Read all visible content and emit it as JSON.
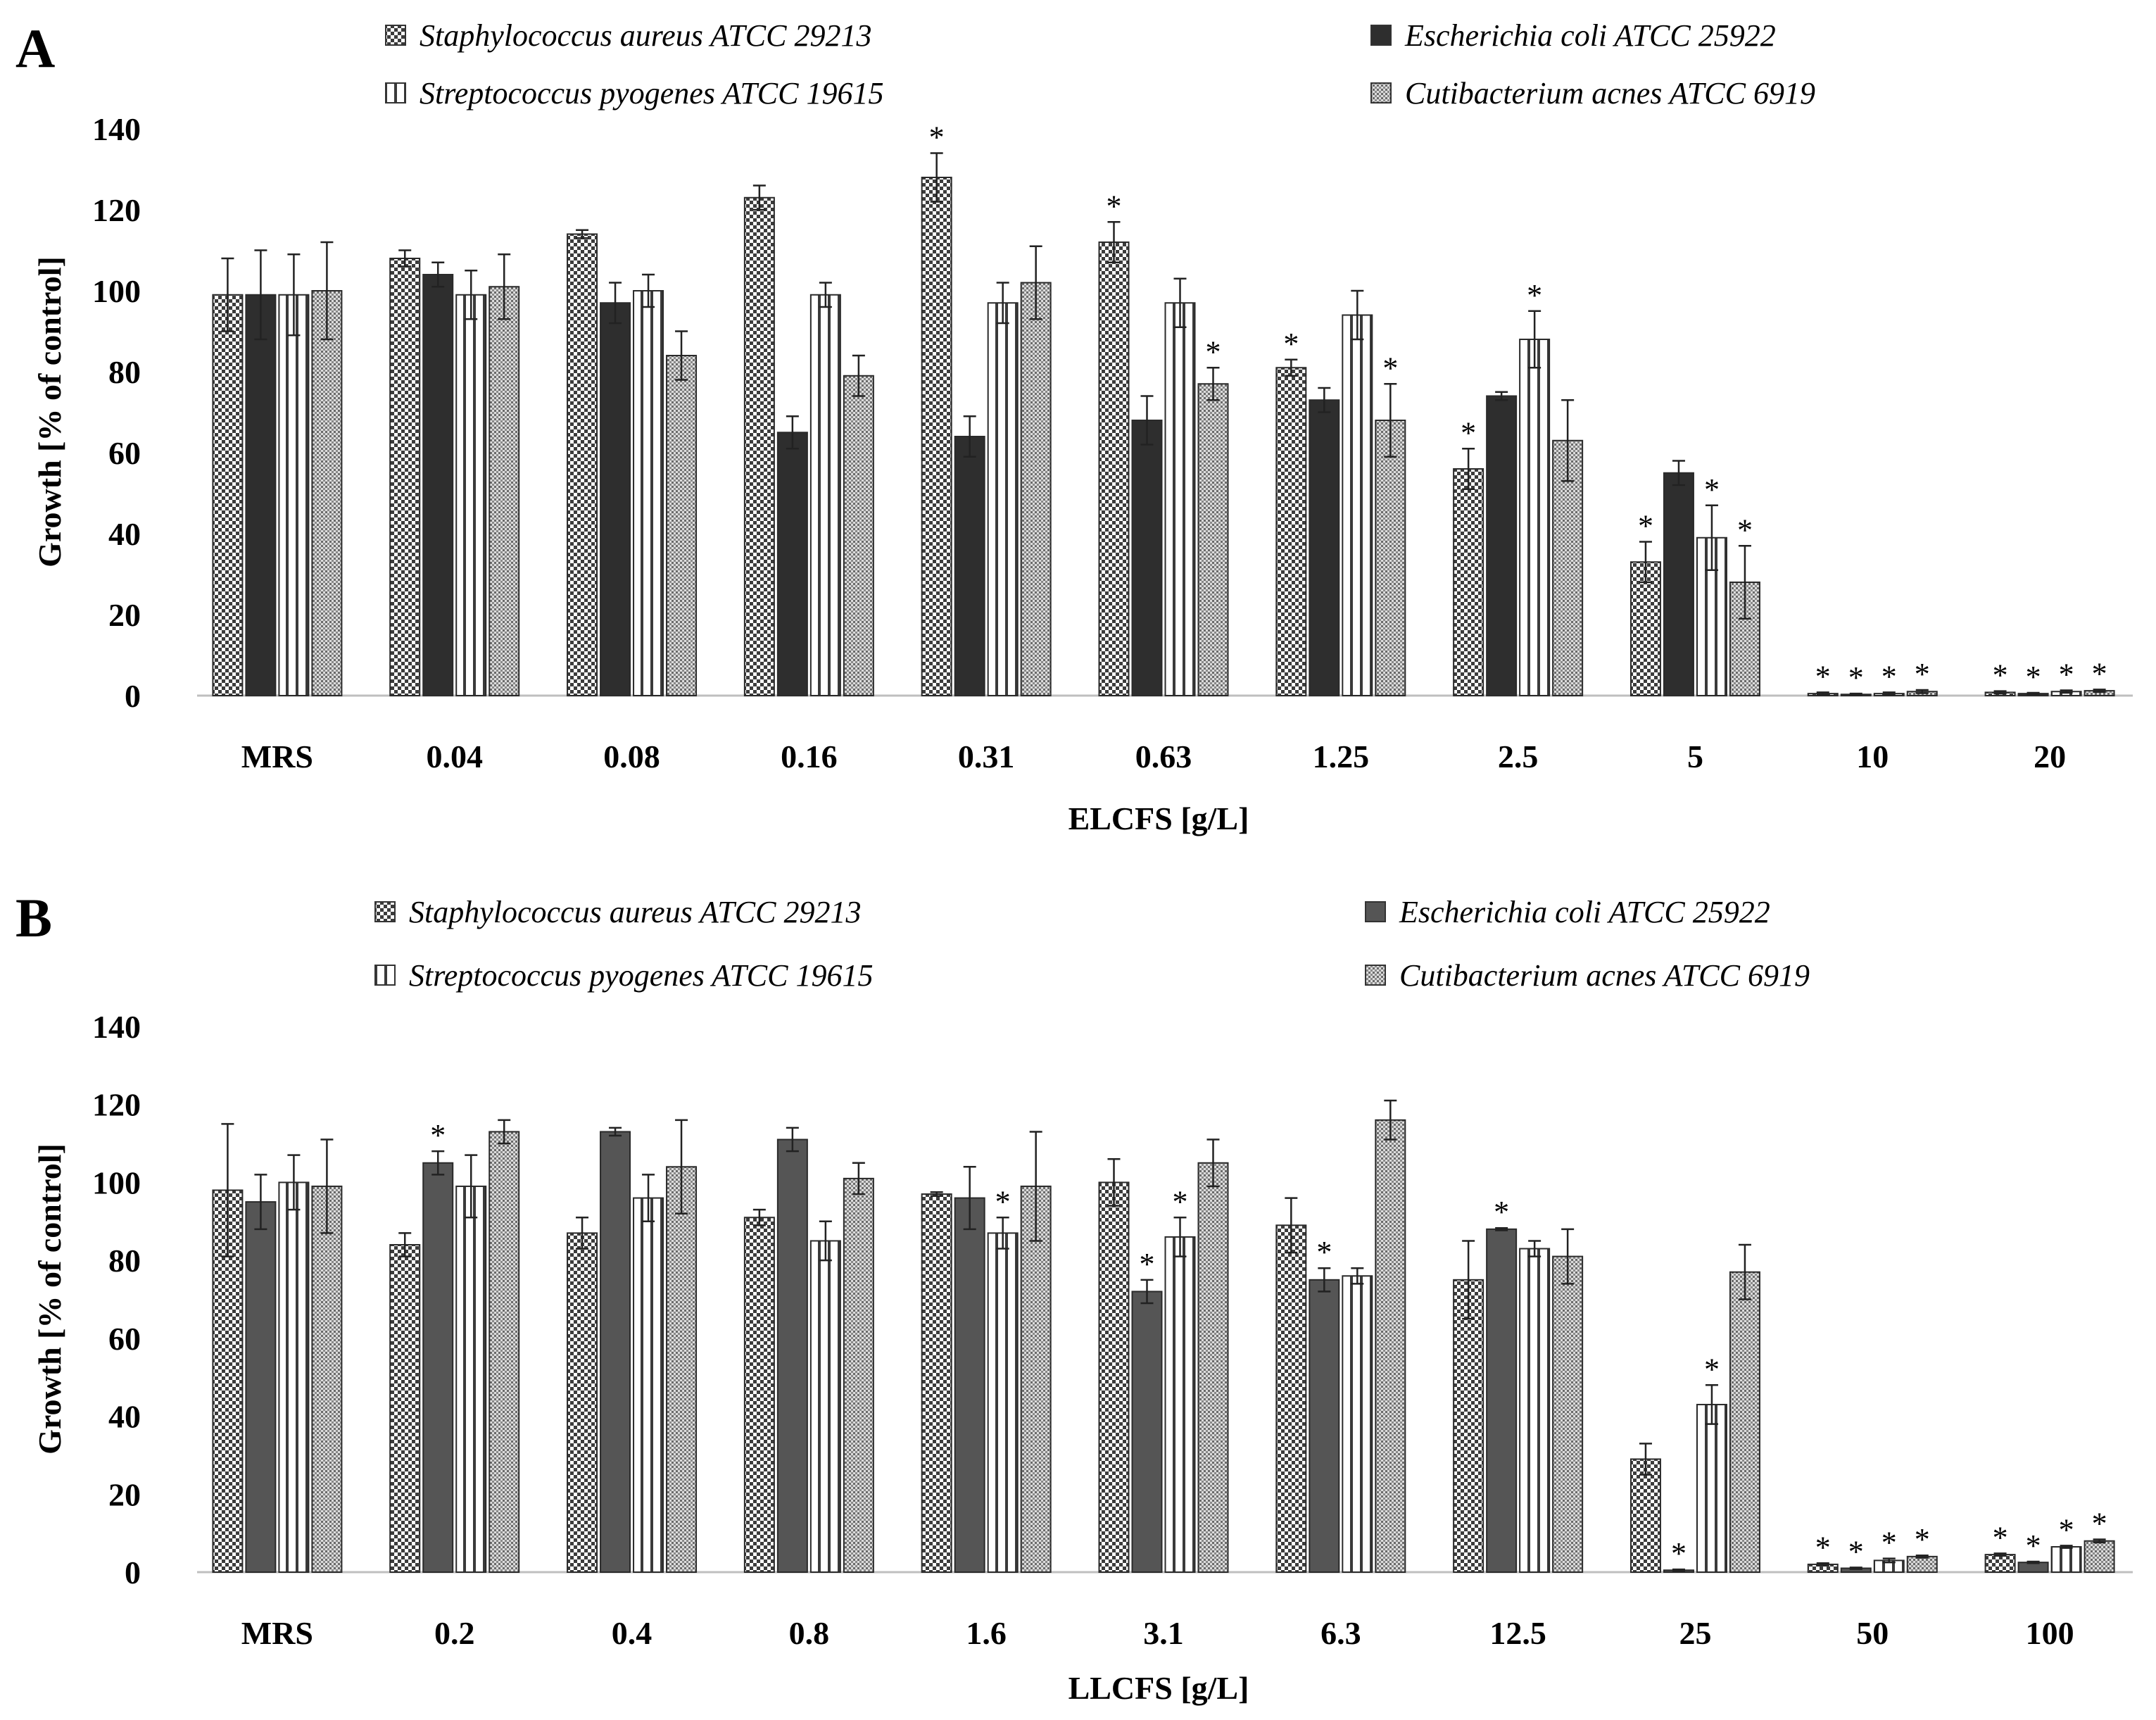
{
  "chart_data": [
    {
      "type": "bar",
      "panel": "A",
      "xlabel": "ELCFS [g/L]",
      "ylabel": "Growth [% of  control]",
      "ylim": [
        0,
        140
      ],
      "yticks": [
        0,
        20,
        40,
        60,
        80,
        100,
        120,
        140
      ],
      "categories": [
        "MRS",
        "0.04",
        "0.08",
        "0.16",
        "0.31",
        "0.63",
        "1.25",
        "2.5",
        "5",
        "10",
        "20"
      ],
      "series": [
        {
          "name": "Staphylococcus aureus ATCC 29213",
          "pattern": "checker",
          "values": [
            99,
            108,
            114,
            123,
            128,
            112,
            81,
            56,
            33,
            0.5,
            0.8
          ],
          "errors": [
            9,
            2,
            1,
            3,
            6,
            5,
            2,
            5,
            5,
            0.3,
            0.3
          ],
          "significant": [
            false,
            false,
            false,
            false,
            true,
            true,
            true,
            true,
            true,
            true,
            true
          ]
        },
        {
          "name": "Escherichia coli ATCC 25922",
          "pattern": "solid",
          "values": [
            99,
            104,
            97,
            65,
            64,
            68,
            73,
            74,
            55,
            0.3,
            0.5
          ],
          "errors": [
            11,
            3,
            5,
            4,
            5,
            6,
            3,
            1,
            3,
            0.2,
            0.2
          ],
          "significant": [
            false,
            false,
            false,
            false,
            false,
            false,
            false,
            false,
            false,
            true,
            true
          ]
        },
        {
          "name": "Streptococcus pyogenes ATCC 19615",
          "pattern": "vstripe",
          "values": [
            99,
            99,
            100,
            99,
            97,
            97,
            94,
            88,
            39,
            0.5,
            1
          ],
          "errors": [
            10,
            6,
            4,
            3,
            5,
            6,
            6,
            7,
            8,
            0.3,
            0.3
          ],
          "significant": [
            false,
            false,
            false,
            false,
            false,
            false,
            false,
            true,
            true,
            true,
            true
          ]
        },
        {
          "name": "Cutibacterium acnes ATCC 6919",
          "pattern": "dots",
          "values": [
            100,
            101,
            84,
            79,
            102,
            77,
            68,
            63,
            28,
            1,
            1.2
          ],
          "errors": [
            12,
            8,
            6,
            5,
            9,
            4,
            9,
            10,
            9,
            0.4,
            0.3
          ],
          "significant": [
            false,
            false,
            false,
            false,
            false,
            true,
            true,
            false,
            true,
            true,
            true
          ]
        }
      ]
    },
    {
      "type": "bar",
      "panel": "B",
      "xlabel": "LLCFS [g/L]",
      "ylabel": "Growth [% of  control]",
      "ylim": [
        0,
        140
      ],
      "yticks": [
        0,
        20,
        40,
        60,
        80,
        100,
        120,
        140
      ],
      "categories": [
        "MRS",
        "0.2",
        "0.4",
        "0.8",
        "1.6",
        "3.1",
        "6.3",
        "12.5",
        "25",
        "50",
        "100"
      ],
      "series": [
        {
          "name": "Staphylococcus aureus ATCC 29213",
          "pattern": "checker",
          "values": [
            98,
            84,
            87,
            91,
            97,
            100,
            89,
            75,
            29,
            2,
            4.5
          ],
          "errors": [
            17,
            3,
            4,
            2,
            0.5,
            6,
            7,
            10,
            4,
            0.3,
            0.3
          ],
          "significant": [
            false,
            false,
            false,
            false,
            false,
            false,
            false,
            false,
            false,
            true,
            true
          ]
        },
        {
          "name": "Escherichia coli ATCC 25922",
          "pattern": "solid",
          "values": [
            95,
            105,
            113,
            111,
            96,
            72,
            75,
            88,
            0.5,
            1,
            2.5
          ],
          "errors": [
            7,
            3,
            1,
            3,
            8,
            3,
            3,
            0.3,
            0.2,
            0.2,
            0.2
          ],
          "significant": [
            false,
            true,
            false,
            false,
            false,
            true,
            true,
            true,
            true,
            true,
            true
          ]
        },
        {
          "name": "Streptococcus pyogenes ATCC 19615",
          "pattern": "vstripe",
          "values": [
            100,
            99,
            96,
            85,
            87,
            86,
            76,
            83,
            43,
            3,
            6.5
          ],
          "errors": [
            7,
            8,
            6,
            5,
            4,
            5,
            2,
            2,
            5,
            0.5,
            0.3
          ],
          "significant": [
            false,
            false,
            false,
            false,
            true,
            true,
            false,
            false,
            true,
            true,
            true
          ]
        },
        {
          "name": "Cutibacterium acnes ATCC 6919",
          "pattern": "dots",
          "values": [
            99,
            113,
            104,
            101,
            99,
            105,
            116,
            81,
            77,
            4,
            8
          ],
          "errors": [
            12,
            3,
            12,
            4,
            14,
            6,
            5,
            7,
            7,
            0.3,
            0.4
          ],
          "significant": [
            false,
            false,
            false,
            false,
            false,
            false,
            false,
            false,
            false,
            true,
            true
          ]
        }
      ]
    }
  ]
}
